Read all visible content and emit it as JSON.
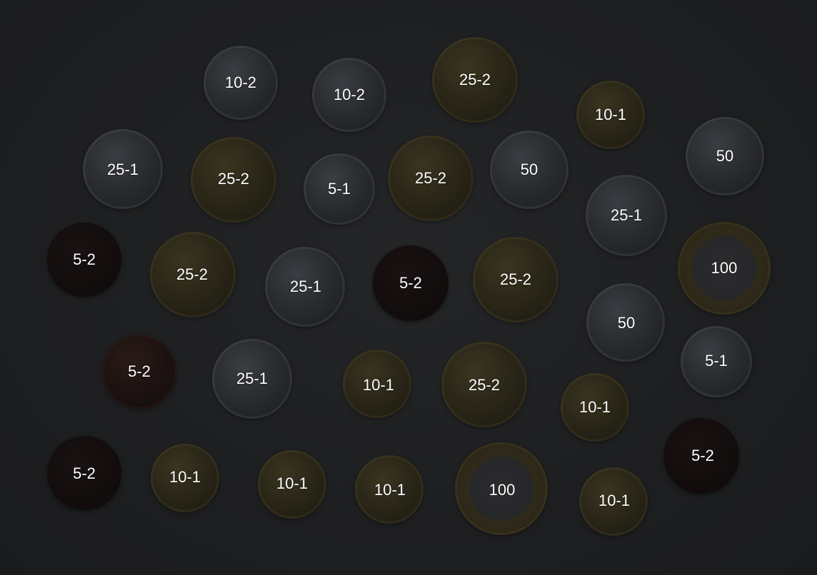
{
  "coins": [
    {
      "label": "10-2"
    },
    {
      "label": "10-2"
    },
    {
      "label": "25-2"
    },
    {
      "label": "10-1"
    },
    {
      "label": "25-1"
    },
    {
      "label": "25-2"
    },
    {
      "label": "5-1"
    },
    {
      "label": "25-2"
    },
    {
      "label": "50"
    },
    {
      "label": "50"
    },
    {
      "label": "25-1"
    },
    {
      "label": "5-2"
    },
    {
      "label": "25-2"
    },
    {
      "label": "25-1"
    },
    {
      "label": "5-2"
    },
    {
      "label": "25-2"
    },
    {
      "label": "100"
    },
    {
      "label": "50"
    },
    {
      "label": "5-2"
    },
    {
      "label": "25-1"
    },
    {
      "label": "10-1"
    },
    {
      "label": "25-2"
    },
    {
      "label": "5-1"
    },
    {
      "label": "10-1"
    },
    {
      "label": "5-2"
    },
    {
      "label": "5-2"
    },
    {
      "label": "10-1"
    },
    {
      "label": "10-1"
    },
    {
      "label": "10-1"
    },
    {
      "label": "100"
    },
    {
      "label": "10-1"
    }
  ]
}
